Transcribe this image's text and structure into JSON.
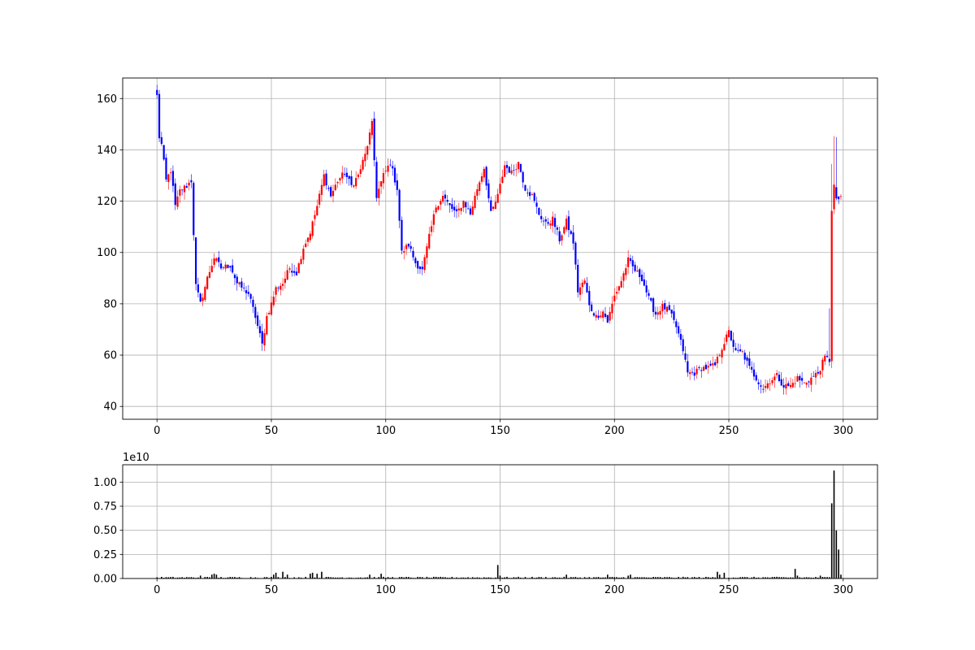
{
  "chart_data": [
    {
      "type": "candlestick",
      "title": "",
      "xlabel": "",
      "ylabel": "",
      "xlim": [
        -15,
        315
      ],
      "ylim": [
        35,
        168
      ],
      "xticks": [
        "0",
        "50",
        "100",
        "150",
        "200",
        "250",
        "300"
      ],
      "yticks": [
        "40",
        "60",
        "80",
        "100",
        "120",
        "140",
        "160"
      ],
      "grid": true,
      "up_color": "#ff0000",
      "down_color": "#0000ff",
      "close_anchors": [
        [
          0,
          161
        ],
        [
          1,
          145
        ],
        [
          2,
          142
        ],
        [
          4,
          128
        ],
        [
          6,
          132
        ],
        [
          8,
          118
        ],
        [
          10,
          124
        ],
        [
          13,
          126
        ],
        [
          15,
          128
        ],
        [
          17,
          87
        ],
        [
          19,
          80
        ],
        [
          22,
          90
        ],
        [
          25,
          98
        ],
        [
          28,
          94
        ],
        [
          32,
          95
        ],
        [
          35,
          88
        ],
        [
          40,
          84
        ],
        [
          43,
          75
        ],
        [
          46,
          64
        ],
        [
          48,
          75
        ],
        [
          50,
          80
        ],
        [
          52,
          86
        ],
        [
          55,
          88
        ],
        [
          58,
          94
        ],
        [
          61,
          92
        ],
        [
          64,
          102
        ],
        [
          67,
          108
        ],
        [
          70,
          118
        ],
        [
          73,
          130
        ],
        [
          76,
          122
        ],
        [
          79,
          128
        ],
        [
          82,
          131
        ],
        [
          85,
          126
        ],
        [
          88,
          130
        ],
        [
          91,
          138
        ],
        [
          94,
          150
        ],
        [
          96,
          122
        ],
        [
          99,
          130
        ],
        [
          102,
          135
        ],
        [
          105,
          125
        ],
        [
          107,
          100
        ],
        [
          110,
          103
        ],
        [
          113,
          96
        ],
        [
          116,
          93
        ],
        [
          119,
          106
        ],
        [
          122,
          118
        ],
        [
          125,
          122
        ],
        [
          128,
          118
        ],
        [
          131,
          115
        ],
        [
          134,
          120
        ],
        [
          137,
          115
        ],
        [
          140,
          125
        ],
        [
          143,
          133
        ],
        [
          146,
          115
        ],
        [
          149,
          122
        ],
        [
          152,
          134
        ],
        [
          155,
          131
        ],
        [
          158,
          135
        ],
        [
          161,
          125
        ],
        [
          164,
          122
        ],
        [
          167,
          115
        ],
        [
          170,
          111
        ],
        [
          173,
          113
        ],
        [
          176,
          105
        ],
        [
          179,
          112
        ],
        [
          182,
          104
        ],
        [
          184,
          85
        ],
        [
          187,
          89
        ],
        [
          189,
          79
        ],
        [
          192,
          75
        ],
        [
          195,
          77
        ],
        [
          197,
          73
        ],
        [
          200,
          83
        ],
        [
          203,
          89
        ],
        [
          206,
          97
        ],
        [
          209,
          93
        ],
        [
          212,
          90
        ],
        [
          215,
          82
        ],
        [
          218,
          76
        ],
        [
          221,
          79
        ],
        [
          224,
          77
        ],
        [
          227,
          71
        ],
        [
          230,
          62
        ],
        [
          232,
          53
        ],
        [
          235,
          53
        ],
        [
          238,
          55
        ],
        [
          241,
          55
        ],
        [
          244,
          56
        ],
        [
          247,
          63
        ],
        [
          250,
          69
        ],
        [
          253,
          61
        ],
        [
          256,
          61
        ],
        [
          259,
          55
        ],
        [
          262,
          51
        ],
        [
          265,
          47
        ],
        [
          268,
          50
        ],
        [
          271,
          52
        ],
        [
          274,
          48
        ],
        [
          277,
          48
        ],
        [
          280,
          51
        ],
        [
          283,
          49
        ],
        [
          286,
          51
        ],
        [
          289,
          53
        ],
        [
          292,
          59
        ],
        [
          294,
          58
        ],
        [
          295,
          117
        ],
        [
          296,
          126
        ],
        [
          297,
          120
        ],
        [
          299,
          122
        ]
      ]
    },
    {
      "type": "bar",
      "title": "",
      "xlabel": "",
      "ylabel": "",
      "xlim": [
        -15,
        315
      ],
      "ylim": [
        0,
        1.18
      ],
      "offset_label": "1e10",
      "xticks": [
        "0",
        "50",
        "100",
        "150",
        "200",
        "250",
        "300"
      ],
      "yticks": [
        "0.00",
        "0.25",
        "0.50",
        "0.75",
        "1.00"
      ],
      "grid": true,
      "bar_color": "#000000",
      "spikes": [
        [
          19,
          0.03
        ],
        [
          24,
          0.04
        ],
        [
          25,
          0.05
        ],
        [
          26,
          0.04
        ],
        [
          52,
          0.06
        ],
        [
          51,
          0.04
        ],
        [
          55,
          0.07
        ],
        [
          57,
          0.04
        ],
        [
          67,
          0.05
        ],
        [
          68,
          0.06
        ],
        [
          70,
          0.05
        ],
        [
          72,
          0.07
        ],
        [
          93,
          0.04
        ],
        [
          98,
          0.05
        ],
        [
          149,
          0.14
        ],
        [
          150,
          0.03
        ],
        [
          179,
          0.04
        ],
        [
          197,
          0.04
        ],
        [
          206,
          0.03
        ],
        [
          207,
          0.04
        ],
        [
          245,
          0.07
        ],
        [
          246,
          0.04
        ],
        [
          248,
          0.06
        ],
        [
          279,
          0.1
        ],
        [
          280,
          0.03
        ],
        [
          290,
          0.03
        ],
        [
          295,
          0.78
        ],
        [
          296,
          1.12
        ],
        [
          297,
          0.5
        ],
        [
          298,
          0.3
        ],
        [
          299,
          0.04
        ]
      ]
    }
  ]
}
